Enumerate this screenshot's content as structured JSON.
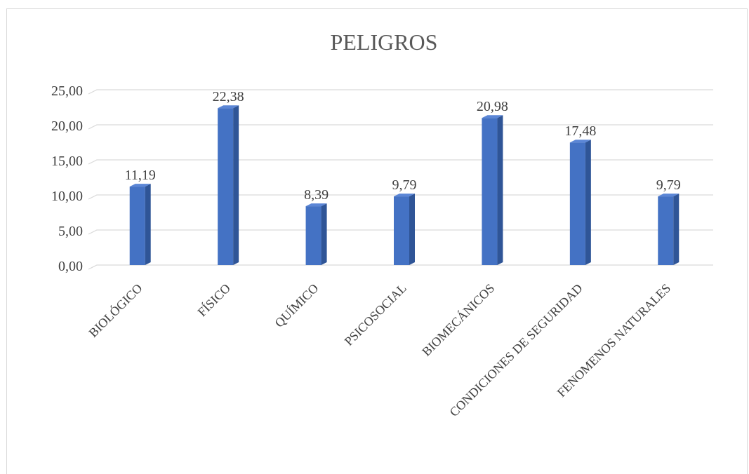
{
  "chart_data": {
    "type": "bar",
    "title": "PELIGROS",
    "categories": [
      "BIOLÓGICO",
      "FÍSICO",
      "QUÍMICO",
      "PSICOSOCIAL",
      "BIOMECÁNICOS",
      "CONDICIONES DE SEGURIDAD",
      "FENOMENOS NATURALES"
    ],
    "values": [
      11.19,
      22.38,
      8.39,
      9.79,
      20.98,
      17.48,
      9.79
    ],
    "data_labels": [
      "11,19",
      "22,38",
      "8,39",
      "9,79",
      "20,98",
      "17,48",
      "9,79"
    ],
    "ylim": [
      0,
      25
    ],
    "yticks": [
      "0,00",
      "5,00",
      "10,00",
      "15,00",
      "20,00",
      "25,00"
    ],
    "xlabel": "",
    "ylabel": "",
    "grid": true,
    "legend": "none",
    "colors": {
      "bar_front": "#4472c4",
      "bar_side": "#2f5597",
      "bar_top": "#5b86d6",
      "grid": "#d9d9d9"
    }
  }
}
